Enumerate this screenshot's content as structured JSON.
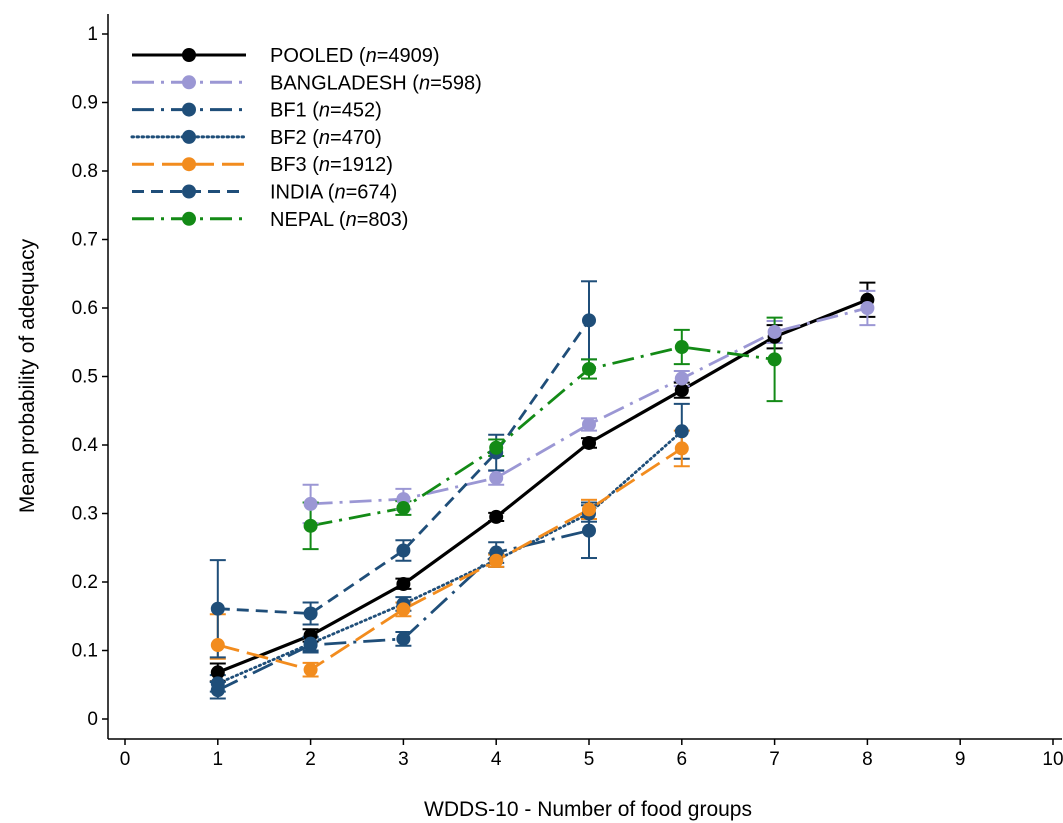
{
  "chart_data": {
    "type": "line",
    "xlabel": "WDDS-10 - Number of food groups",
    "ylabel": "Mean probability of adequacy",
    "xlim": [
      0,
      10
    ],
    "ylim": [
      0,
      1
    ],
    "xticks": [
      "0",
      "1",
      "2",
      "3",
      "4",
      "5",
      "6",
      "7",
      "8",
      "9",
      "10"
    ],
    "yticks": [
      "0",
      "0.1",
      "0.2",
      "0.3",
      "0.4",
      "0.5",
      "0.6",
      "0.7",
      "0.8",
      "0.9",
      "1"
    ],
    "grid": false,
    "legend_position": "top-left",
    "series": [
      {
        "name": "POOLED (n=4909)",
        "legend_prefix": "POOLED (",
        "legend_n": "n",
        "legend_suffix": "=4909)",
        "color": "#000000",
        "style": "solid",
        "points": [
          {
            "x": 1,
            "y": 0.068,
            "lo": 0.055,
            "hi": 0.081
          },
          {
            "x": 2,
            "y": 0.122,
            "lo": 0.113,
            "hi": 0.131
          },
          {
            "x": 3,
            "y": 0.197,
            "lo": 0.19,
            "hi": 0.205
          },
          {
            "x": 4,
            "y": 0.295,
            "lo": 0.289,
            "hi": 0.301
          },
          {
            "x": 5,
            "y": 0.403,
            "lo": 0.396,
            "hi": 0.41
          },
          {
            "x": 6,
            "y": 0.48,
            "lo": 0.469,
            "hi": 0.491
          },
          {
            "x": 7,
            "y": 0.558,
            "lo": 0.541,
            "hi": 0.575
          },
          {
            "x": 8,
            "y": 0.612,
            "lo": 0.587,
            "hi": 0.637
          }
        ]
      },
      {
        "name": "BANGLADESH (n=598)",
        "legend_prefix": "BANGLADESH (",
        "legend_n": "n",
        "legend_suffix": "=598)",
        "color": "#9b97d4",
        "style": "longdashdot",
        "points": [
          {
            "x": 2,
            "y": 0.314,
            "lo": 0.286,
            "hi": 0.342
          },
          {
            "x": 3,
            "y": 0.321,
            "lo": 0.306,
            "hi": 0.336
          },
          {
            "x": 4,
            "y": 0.352,
            "lo": 0.342,
            "hi": 0.362
          },
          {
            "x": 5,
            "y": 0.43,
            "lo": 0.421,
            "hi": 0.439
          },
          {
            "x": 6,
            "y": 0.497,
            "lo": 0.486,
            "hi": 0.508
          },
          {
            "x": 7,
            "y": 0.565,
            "lo": 0.549,
            "hi": 0.581
          },
          {
            "x": 8,
            "y": 0.6,
            "lo": 0.575,
            "hi": 0.625
          }
        ]
      },
      {
        "name": "BF1 (n=452)",
        "legend_prefix": "BF1 (",
        "legend_n": "n",
        "legend_suffix": "=452)",
        "color": "#1f4e79",
        "style": "longdashdot",
        "points": [
          {
            "x": 1,
            "y": 0.042,
            "lo": 0.03,
            "hi": 0.054
          },
          {
            "x": 2,
            "y": 0.108,
            "lo": 0.097,
            "hi": 0.119
          },
          {
            "x": 3,
            "y": 0.117,
            "lo": 0.107,
            "hi": 0.127
          },
          {
            "x": 4,
            "y": 0.243,
            "lo": 0.228,
            "hi": 0.258
          },
          {
            "x": 5,
            "y": 0.275,
            "lo": 0.235,
            "hi": 0.316
          }
        ]
      },
      {
        "name": "BF2 (n=470)",
        "legend_prefix": "BF2 (",
        "legend_n": "n",
        "legend_suffix": "=470)",
        "color": "#1f4e79",
        "style": "dotted",
        "points": [
          {
            "x": 1,
            "y": 0.052,
            "lo": 0.04,
            "hi": 0.064
          },
          {
            "x": 2,
            "y": 0.11,
            "lo": 0.1,
            "hi": 0.12
          },
          {
            "x": 3,
            "y": 0.168,
            "lo": 0.158,
            "hi": 0.178
          },
          {
            "x": 4,
            "y": 0.232,
            "lo": 0.222,
            "hi": 0.242
          },
          {
            "x": 5,
            "y": 0.3,
            "lo": 0.288,
            "hi": 0.312
          },
          {
            "x": 6,
            "y": 0.42,
            "lo": 0.38,
            "hi": 0.46
          }
        ]
      },
      {
        "name": "BF3 (n=1912)",
        "legend_prefix": "BF3 (",
        "legend_n": "n",
        "legend_suffix": "=1912)",
        "color": "#f28c1e",
        "style": "longdash",
        "points": [
          {
            "x": 1,
            "y": 0.108,
            "lo": 0.088,
            "hi": 0.153
          },
          {
            "x": 2,
            "y": 0.072,
            "lo": 0.062,
            "hi": 0.082
          },
          {
            "x": 3,
            "y": 0.16,
            "lo": 0.15,
            "hi": 0.17
          },
          {
            "x": 4,
            "y": 0.231,
            "lo": 0.222,
            "hi": 0.24
          },
          {
            "x": 5,
            "y": 0.306,
            "lo": 0.292,
            "hi": 0.32
          },
          {
            "x": 6,
            "y": 0.395,
            "lo": 0.369,
            "hi": 0.421
          }
        ]
      },
      {
        "name": "INDIA (n=674)",
        "legend_prefix": "INDIA (",
        "legend_n": "n",
        "legend_suffix": "=674)",
        "color": "#1f4e79",
        "style": "dash",
        "points": [
          {
            "x": 1,
            "y": 0.161,
            "lo": 0.09,
            "hi": 0.232
          },
          {
            "x": 2,
            "y": 0.154,
            "lo": 0.138,
            "hi": 0.17
          },
          {
            "x": 3,
            "y": 0.246,
            "lo": 0.231,
            "hi": 0.261
          },
          {
            "x": 4,
            "y": 0.389,
            "lo": 0.363,
            "hi": 0.415
          },
          {
            "x": 5,
            "y": 0.582,
            "lo": 0.525,
            "hi": 0.639
          }
        ]
      },
      {
        "name": "NEPAL (n=803)",
        "legend_prefix": "NEPAL (",
        "legend_n": "n",
        "legend_suffix": "=803)",
        "color": "#138a16",
        "style": "longdashdot",
        "points": [
          {
            "x": 2,
            "y": 0.282,
            "lo": 0.248,
            "hi": 0.316
          },
          {
            "x": 3,
            "y": 0.308,
            "lo": 0.298,
            "hi": 0.318
          },
          {
            "x": 4,
            "y": 0.396,
            "lo": 0.384,
            "hi": 0.408
          },
          {
            "x": 5,
            "y": 0.511,
            "lo": 0.497,
            "hi": 0.525
          },
          {
            "x": 6,
            "y": 0.543,
            "lo": 0.518,
            "hi": 0.568
          },
          {
            "x": 7,
            "y": 0.525,
            "lo": 0.464,
            "hi": 0.586
          }
        ]
      }
    ]
  }
}
